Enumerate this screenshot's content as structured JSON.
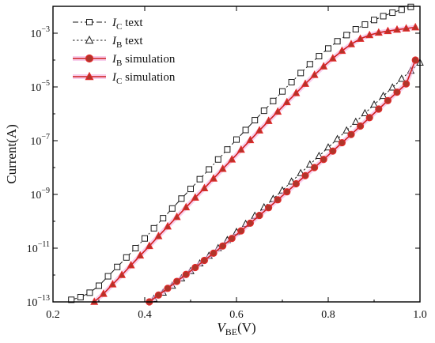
{
  "chart_data": {
    "type": "scatter",
    "xlabel": {
      "main": "V",
      "sub": "BE",
      "unit": "(V)"
    },
    "ylabel": "Current(A)",
    "xlim": [
      0.2,
      1.0
    ],
    "ylim": [
      1e-13,
      0.01
    ],
    "yscale": "log",
    "x_ticks": [
      "0.2",
      "0.4",
      "0.6",
      "0.8",
      "1.0"
    ],
    "y_ticks": [
      {
        "value": 1e-13,
        "base": "10",
        "exp": "−13"
      },
      {
        "value": 1e-11,
        "base": "10",
        "exp": "−11"
      },
      {
        "value": 1e-09,
        "base": "10",
        "exp": "−9"
      },
      {
        "value": 1e-07,
        "base": "10",
        "exp": "−7"
      },
      {
        "value": 1e-05,
        "base": "10",
        "exp": "−5"
      },
      {
        "value": 0.001,
        "base": "10",
        "exp": "−3"
      }
    ],
    "legend_position": "top-left",
    "series": [
      {
        "name": {
          "main": "I",
          "sub": "C",
          "suffix": " text"
        },
        "style": "dashdot-open-square",
        "color": "#1a1a1a",
        "x": [
          0.24,
          0.26,
          0.28,
          0.3,
          0.32,
          0.34,
          0.36,
          0.38,
          0.4,
          0.42,
          0.44,
          0.46,
          0.48,
          0.5,
          0.52,
          0.54,
          0.56,
          0.58,
          0.6,
          0.62,
          0.64,
          0.66,
          0.68,
          0.7,
          0.72,
          0.74,
          0.76,
          0.78,
          0.8,
          0.82,
          0.84,
          0.86,
          0.88,
          0.9,
          0.92,
          0.94,
          0.96,
          0.98
        ],
        "y": [
          1.2e-13,
          1.5e-13,
          2.2e-13,
          4e-13,
          9e-13,
          2e-12,
          4.5e-12,
          1e-11,
          2.3e-11,
          5.5e-11,
          1.3e-10,
          3e-10,
          7e-10,
          1.6e-09,
          3.7e-09,
          8.5e-09,
          2e-08,
          4.7e-08,
          1.1e-07,
          2.5e-07,
          5.8e-07,
          1.3e-06,
          3e-06,
          6.8e-06,
          1.5e-05,
          3.3e-05,
          7e-05,
          0.00014,
          0.00027,
          0.0005,
          0.00085,
          0.0014,
          0.0021,
          0.0031,
          0.0043,
          0.0058,
          0.0075,
          0.0095
        ]
      },
      {
        "name": {
          "main": "I",
          "sub": "B",
          "suffix": " text"
        },
        "style": "dot-open-triangle",
        "color": "#1a1a1a",
        "x": [
          0.42,
          0.44,
          0.46,
          0.48,
          0.5,
          0.52,
          0.54,
          0.56,
          0.58,
          0.6,
          0.62,
          0.64,
          0.66,
          0.68,
          0.7,
          0.72,
          0.74,
          0.76,
          0.78,
          0.8,
          0.82,
          0.84,
          0.86,
          0.88,
          0.9,
          0.92,
          0.94,
          0.96,
          0.98,
          1.0
        ],
        "y": [
          1.3e-13,
          2.2e-13,
          4e-13,
          7.5e-13,
          1.4e-12,
          2.7e-12,
          5.2e-12,
          1e-11,
          2e-11,
          4e-11,
          8e-11,
          1.6e-10,
          3.3e-10,
          6.8e-10,
          1.4e-09,
          3e-09,
          6.2e-09,
          1.3e-08,
          2.7e-08,
          5.6e-08,
          1.15e-07,
          2.4e-07,
          5e-07,
          1.05e-06,
          2.2e-06,
          4.6e-06,
          9.5e-06,
          2e-05,
          4e-05,
          8e-05
        ]
      },
      {
        "name": {
          "main": "I",
          "sub": "B",
          "suffix": " simulation"
        },
        "style": "solid-filled-circle",
        "color": "#d42020",
        "x": [
          0.41,
          0.43,
          0.45,
          0.47,
          0.49,
          0.51,
          0.53,
          0.55,
          0.57,
          0.59,
          0.61,
          0.63,
          0.65,
          0.67,
          0.69,
          0.71,
          0.73,
          0.75,
          0.77,
          0.79,
          0.81,
          0.83,
          0.85,
          0.87,
          0.89,
          0.91,
          0.93,
          0.95,
          0.97,
          0.99
        ],
        "y": [
          1e-13,
          1.8e-13,
          3.2e-13,
          5.8e-13,
          1.05e-12,
          1.9e-12,
          3.5e-12,
          6.5e-12,
          1.2e-11,
          2.3e-11,
          4.4e-11,
          8.5e-11,
          1.65e-10,
          3.2e-10,
          6.3e-10,
          1.25e-09,
          2.5e-09,
          5e-09,
          1e-08,
          2e-08,
          4.1e-08,
          8.4e-08,
          1.7e-07,
          3.5e-07,
          7.2e-07,
          1.5e-06,
          3.1e-06,
          6.4e-06,
          1.3e-05,
          0.0001
        ]
      },
      {
        "name": {
          "main": "I",
          "sub": "C",
          "suffix": " simulation"
        },
        "style": "solid-filled-triangle",
        "color": "#d42020",
        "x": [
          0.29,
          0.31,
          0.33,
          0.35,
          0.37,
          0.39,
          0.41,
          0.43,
          0.45,
          0.47,
          0.49,
          0.51,
          0.53,
          0.55,
          0.57,
          0.59,
          0.61,
          0.63,
          0.65,
          0.67,
          0.69,
          0.71,
          0.73,
          0.75,
          0.77,
          0.79,
          0.81,
          0.83,
          0.85,
          0.87,
          0.89,
          0.91,
          0.93,
          0.95,
          0.97,
          0.99
        ],
        "y": [
          1e-13,
          2e-13,
          4.5e-13,
          1e-12,
          2.3e-12,
          5.3e-12,
          1.2e-11,
          2.8e-11,
          6.4e-11,
          1.45e-10,
          3.3e-10,
          7.6e-10,
          1.7e-09,
          3.9e-09,
          8.9e-09,
          2e-08,
          4.6e-08,
          1.05e-07,
          2.4e-07,
          5.4e-07,
          1.2e-06,
          2.7e-06,
          5.9e-06,
          1.3e-05,
          2.8e-05,
          5.8e-05,
          0.000115,
          0.00022,
          0.00039,
          0.00062,
          0.00085,
          0.00105,
          0.0012,
          0.00135,
          0.0015,
          0.00165
        ]
      }
    ]
  }
}
